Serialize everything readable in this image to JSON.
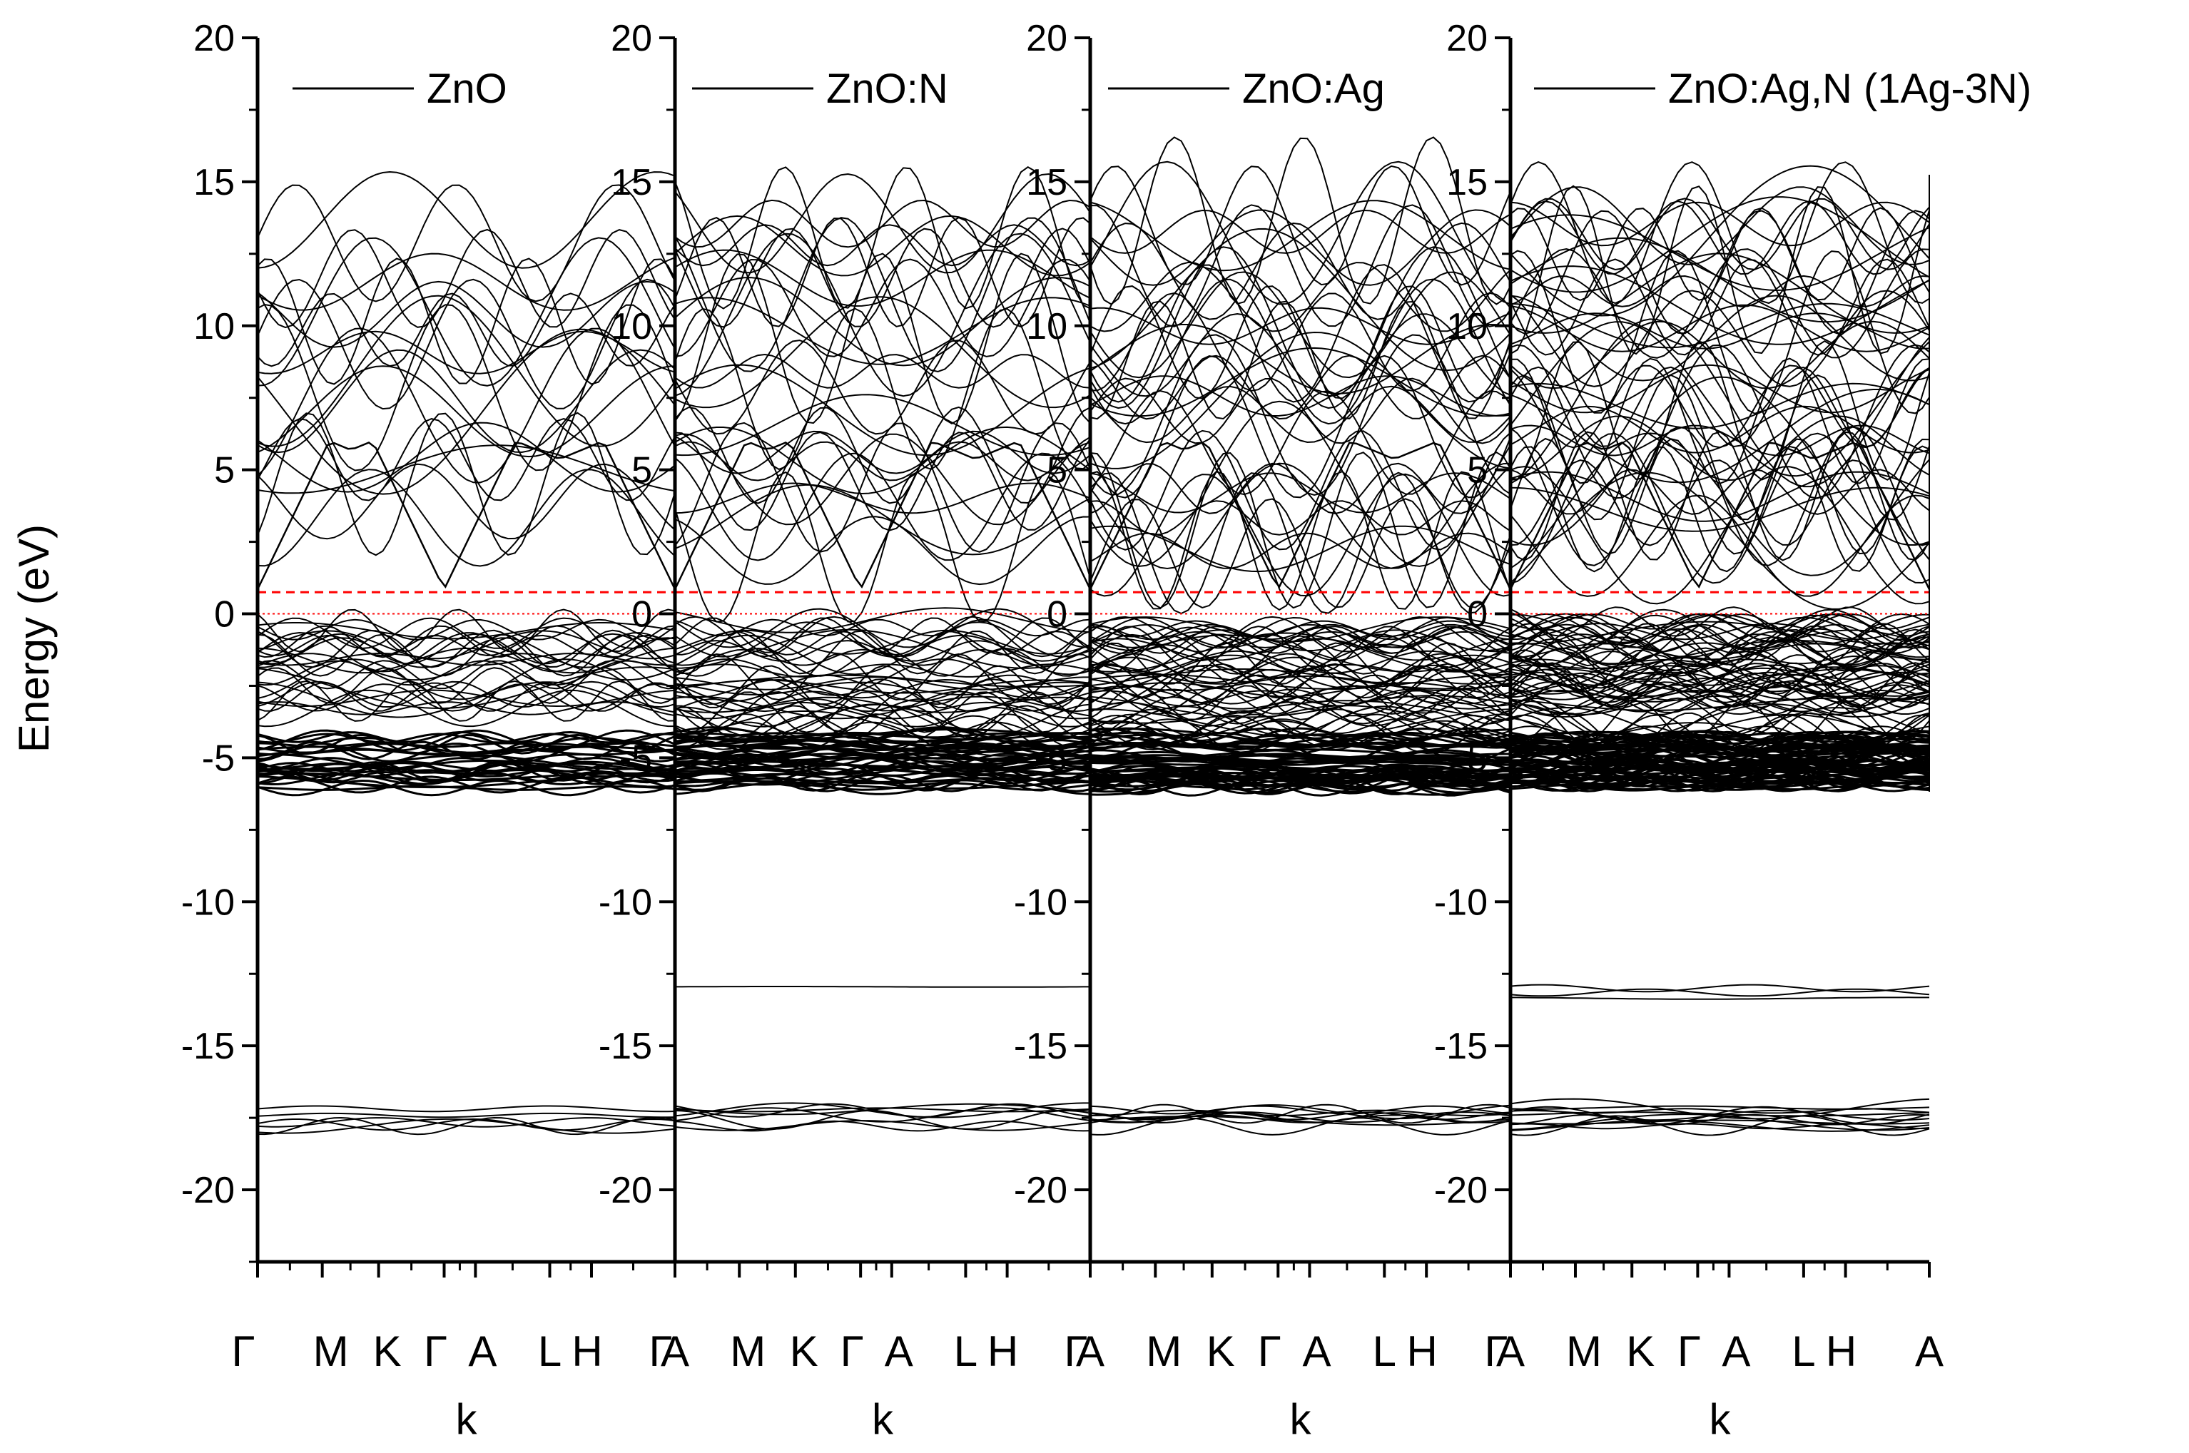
{
  "ylabel": "Energy (eV)",
  "xlabel": "k",
  "colors": {
    "band": "#000000",
    "cbm_line": "#ff0000",
    "fermi_line": "#ff0000"
  },
  "chart_data": [
    {
      "type": "line",
      "legend": "ZnO",
      "kpoints": [
        "Γ",
        "M",
        "K",
        "Γ",
        "A",
        "L",
        "H",
        "A"
      ],
      "ylim": [
        -22.5,
        20
      ],
      "yticks": [
        20,
        15,
        10,
        5,
        0,
        -5,
        -10,
        -15,
        -20
      ],
      "gap_edge": 0.75,
      "grid": false,
      "legend_position": "top-right"
    },
    {
      "type": "line",
      "legend": "ZnO:N",
      "kpoints": [
        "Γ",
        "M",
        "K",
        "Γ",
        "A",
        "L",
        "H",
        "A"
      ],
      "ylim": [
        -22.5,
        20
      ],
      "yticks": [
        20,
        15,
        10,
        5,
        0,
        -5,
        -10,
        -15,
        -20
      ],
      "gap_edge": 0.75,
      "grid": false,
      "legend_position": "top-right"
    },
    {
      "type": "line",
      "legend": "ZnO:Ag",
      "kpoints": [
        "Γ",
        "M",
        "K",
        "Γ",
        "A",
        "L",
        "H",
        "A"
      ],
      "ylim": [
        -22.5,
        20
      ],
      "yticks": [
        20,
        15,
        10,
        5,
        0,
        -5,
        -10,
        -15,
        -20
      ],
      "gap_edge": 0.75,
      "grid": false,
      "legend_position": "top-right"
    },
    {
      "type": "line",
      "legend": "ZnO:Ag,N (1Ag-3N)",
      "kpoints": [
        "Γ",
        "M",
        "K",
        "Γ",
        "A",
        "L",
        "H",
        "A"
      ],
      "ylim": [
        -22.5,
        20
      ],
      "yticks": [
        20,
        15,
        10,
        5,
        0,
        -5,
        -10,
        -15,
        -20
      ],
      "gap_edge": 0.75,
      "grid": false,
      "legend_position": "top-right"
    }
  ]
}
